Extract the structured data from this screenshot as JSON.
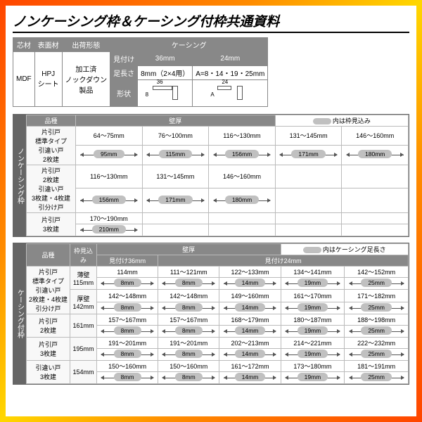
{
  "title": "ノンケーシング枠＆ケーシング付枠共通資料",
  "t1": {
    "h": [
      "芯材",
      "表面材",
      "出荷形態",
      "ケーシング"
    ],
    "sub": [
      "見付け",
      "36mm",
      "24mm"
    ],
    "row1": [
      "MDF",
      "HPJ\nシート",
      "加工済\nノックダウン\n製品",
      "足長さ",
      "8mm（2×4用）",
      "A=8・14・19・25mm"
    ],
    "shapeLabel": "形状",
    "shapes": [
      {
        "w": "36",
        "h": "8"
      },
      {
        "w": "24",
        "h": "A"
      }
    ]
  },
  "s1": {
    "side": "ノンケーシング枠",
    "heads": [
      "品種",
      "壁厚"
    ],
    "legend": "内は枠見込み",
    "rows": [
      {
        "labels": [
          "片引戸",
          "標準タイプ",
          "引違い戸",
          "2枚建"
        ],
        "ranges": [
          "64～75mm",
          "76～100mm",
          "116～130mm",
          "131～145mm",
          "146～160mm"
        ],
        "pills": [
          "95mm",
          "115mm",
          "156mm",
          "171mm",
          "180mm"
        ]
      },
      {
        "labels": [
          "片引戸",
          "2枚建",
          "引違い戸",
          "3枚建・4枚建",
          "引分け戸"
        ],
        "ranges": [
          "116～130mm",
          "131～145mm",
          "146～160mm",
          "",
          ""
        ],
        "pills": [
          "156mm",
          "171mm",
          "180mm",
          "",
          ""
        ]
      },
      {
        "labels": [
          "片引戸",
          "3枚建"
        ],
        "ranges": [
          "170～190mm",
          "",
          "",
          "",
          ""
        ],
        "pills": [
          "210mm",
          "",
          "",
          "",
          ""
        ]
      }
    ]
  },
  "s2": {
    "side": "ケーシング付枠",
    "heads": [
      "品種",
      "枠見込み",
      "壁厚"
    ],
    "legend": "内はケーシング足長さ",
    "sub": [
      "見付け36mm",
      "見付け24mm"
    ],
    "rows": [
      {
        "labels": [
          "片引戸",
          "標準タイプ",
          "引違い戸",
          "2枚建・4枚建",
          "引分け戸"
        ],
        "mikomi": [
          "薄壁",
          "115mm",
          "厚壁",
          "142mm"
        ],
        "r1": {
          "v": [
            "114mm",
            "111～121mm",
            "122～133mm",
            "134～141mm",
            "142～152mm"
          ],
          "p": [
            "8mm",
            "8mm",
            "14mm",
            "19mm",
            "25mm"
          ]
        },
        "r2": {
          "v": [
            "142～148mm",
            "142～148mm",
            "149～160mm",
            "161～170mm",
            "171～182mm"
          ],
          "p": [
            "8mm",
            "8mm",
            "14mm",
            "19mm",
            "25mm"
          ]
        }
      },
      {
        "labels": [
          "片引戸",
          "2枚建"
        ],
        "mikomi": [
          "161mm"
        ],
        "r1": {
          "v": [
            "157～167mm",
            "157～167mm",
            "168～179mm",
            "180～187mm",
            "188～198mm"
          ],
          "p": [
            "8mm",
            "8mm",
            "14mm",
            "19mm",
            "25mm"
          ]
        }
      },
      {
        "labels": [
          "片引戸",
          "3枚建"
        ],
        "mikomi": [
          "195mm"
        ],
        "r1": {
          "v": [
            "191～201mm",
            "191～201mm",
            "202～213mm",
            "214～221mm",
            "222～232mm"
          ],
          "p": [
            "8mm",
            "8mm",
            "14mm",
            "19mm",
            "25mm"
          ]
        }
      },
      {
        "labels": [
          "引違い戸",
          "3枚建"
        ],
        "mikomi": [
          "154mm"
        ],
        "r1": {
          "v": [
            "150～160mm",
            "150～160mm",
            "161～172mm",
            "173～180mm",
            "181～191mm"
          ],
          "p": [
            "8mm",
            "8mm",
            "14mm",
            "19mm",
            "25mm"
          ]
        }
      }
    ]
  },
  "colors": {
    "header": "#888888",
    "pill": "#c0c0c0",
    "border": "#bbbbbb",
    "sidebar": "#666666"
  }
}
